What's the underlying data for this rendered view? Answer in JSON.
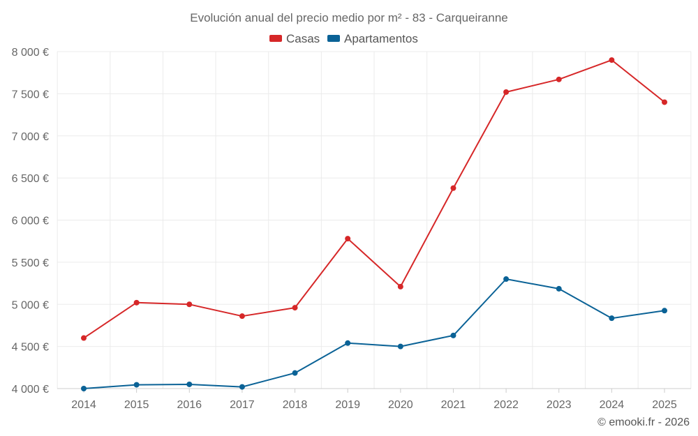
{
  "chart_data": {
    "type": "line",
    "title": "Evolución anual del precio medio por m² - 83 - Carqueiranne",
    "categories": [
      "2014",
      "2015",
      "2016",
      "2017",
      "2018",
      "2019",
      "2020",
      "2021",
      "2022",
      "2023",
      "2024",
      "2025"
    ],
    "series": [
      {
        "name": "Casas",
        "color": "#d62728",
        "values": [
          4600,
          5020,
          5000,
          4860,
          4960,
          5780,
          5210,
          6380,
          7520,
          7670,
          7900,
          7400
        ]
      },
      {
        "name": "Apartamentos",
        "color": "#0a6296",
        "values": [
          4000,
          4045,
          4050,
          4020,
          4185,
          4540,
          4500,
          4630,
          5300,
          5185,
          4835,
          4925
        ]
      }
    ],
    "y_ticks": [
      "4 000 €",
      "4 500 €",
      "5 000 €",
      "5 500 €",
      "6 000 €",
      "6 500 €",
      "7 000 €",
      "7 500 €",
      "8 000 €"
    ],
    "ylim": [
      4000,
      8000
    ],
    "legend_position": "top-center",
    "grid": true,
    "xlabel": "",
    "ylabel": ""
  },
  "credit": "© emooki.fr - 2026"
}
